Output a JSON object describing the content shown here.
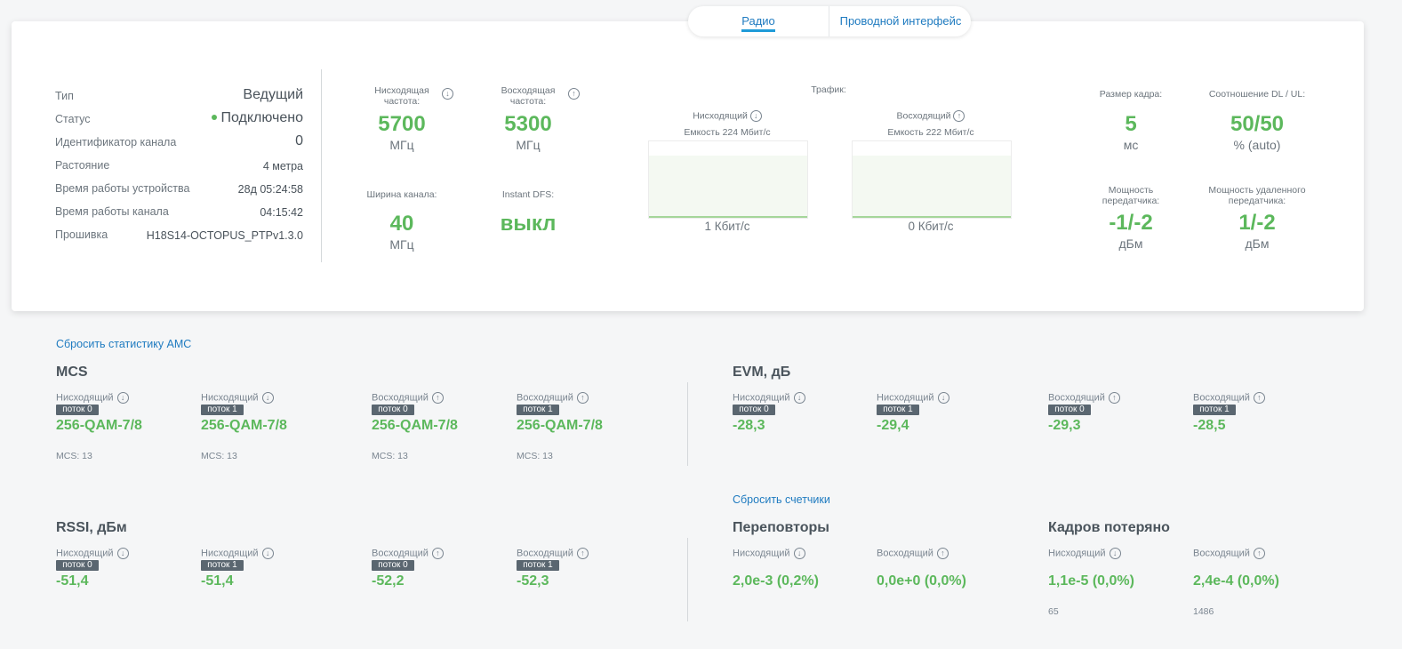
{
  "tabs": {
    "radio": "Радио",
    "wired": "Проводной интерфейс"
  },
  "info": [
    {
      "key": "Тип",
      "value": "Ведущий"
    },
    {
      "key": "Статус",
      "value": "Подключено"
    },
    {
      "key": "Идентификатор канала",
      "value": "0"
    },
    {
      "key": "Растояние",
      "value": "4 метра"
    },
    {
      "key": "Время работы устройства",
      "value": "28д 05:24:58"
    },
    {
      "key": "Время работы канала",
      "value": "04:15:42"
    },
    {
      "key": "Прошивка",
      "value": "H18S14-OCTOPUS_PTPv1.3.0"
    }
  ],
  "params": {
    "down_freq": {
      "label": "Нисходящая частота:",
      "value": "5700",
      "unit": "МГц"
    },
    "up_freq": {
      "label": "Восходящая частота:",
      "value": "5300",
      "unit": "МГц"
    },
    "bandwidth": {
      "label": "Ширина канала:",
      "value": "40",
      "unit": "МГц"
    },
    "dfs": {
      "label": "Instant DFS:",
      "value": "выкл"
    }
  },
  "traffic": {
    "title": "Трафик:",
    "down": {
      "label": "Нисходящий",
      "capacity": "Емкость 224 Мбит/с",
      "value": "1 Кбит/с",
      "level": 0.0
    },
    "up": {
      "label": "Восходящий",
      "capacity": "Емкость 222 Мбит/с",
      "value": "0 Кбит/с",
      "level": 0.0
    }
  },
  "frame": {
    "size": {
      "label": "Размер кадра:",
      "value": "5",
      "unit": "мс"
    },
    "ratio": {
      "label": "Соотношение DL / UL:",
      "value": "50/50",
      "unit": "% (auto)"
    },
    "tx_power": {
      "label": "Мощность передатчика:",
      "value": "-1/-2",
      "unit": "дБм"
    },
    "remote_tx_power": {
      "label": "Мощность удаленного передатчика:",
      "value": "1/-2",
      "unit": "дБм"
    }
  },
  "reset_amc": "Сбросить статистику AMC",
  "reset_counters": "Сбросить счетчики",
  "mcs": {
    "title": "MCS",
    "items": [
      {
        "dir": "Нисходящий",
        "stream": "поток 0",
        "value": "256-QAM-7/8",
        "sub": "MCS: 13"
      },
      {
        "dir": "Нисходящий",
        "stream": "поток 1",
        "value": "256-QAM-7/8",
        "sub": "MCS: 13"
      },
      {
        "dir": "Восходящий",
        "stream": "поток 0",
        "value": "256-QAM-7/8",
        "sub": "MCS: 13"
      },
      {
        "dir": "Восходящий",
        "stream": "поток 1",
        "value": "256-QAM-7/8",
        "sub": "MCS: 13"
      }
    ]
  },
  "evm": {
    "title": "EVM, дБ",
    "items": [
      {
        "dir": "Нисходящий",
        "stream": "поток 0",
        "value": "-28,3"
      },
      {
        "dir": "Нисходящий",
        "stream": "поток 1",
        "value": "-29,4"
      },
      {
        "dir": "Восходящий",
        "stream": "поток 0",
        "value": "-29,3"
      },
      {
        "dir": "Восходящий",
        "stream": "поток 1",
        "value": "-28,5"
      }
    ]
  },
  "rssi": {
    "title": "RSSI, дБм",
    "items": [
      {
        "dir": "Нисходящий",
        "stream": "поток 0",
        "value": "-51,4"
      },
      {
        "dir": "Нисходящий",
        "stream": "поток 1",
        "value": "-51,4"
      },
      {
        "dir": "Восходящий",
        "stream": "поток 0",
        "value": "-52,2"
      },
      {
        "dir": "Восходящий",
        "stream": "поток 1",
        "value": "-52,3"
      }
    ]
  },
  "retries": {
    "title": "Переповторы",
    "items": [
      {
        "dir": "Нисходящий",
        "value": "2,0e-3 (0,2%)"
      },
      {
        "dir": "Восходящий",
        "value": "0,0e+0 (0,0%)"
      }
    ]
  },
  "lost": {
    "title": "Кадров потеряно",
    "items": [
      {
        "dir": "Нисходящий",
        "value": "1,1e-5 (0,0%)",
        "sub": "65"
      },
      {
        "dir": "Восходящий",
        "value": "2,4e-4 (0,0%)",
        "sub": "1486"
      }
    ]
  },
  "colors": {
    "accent": "#5cb85c",
    "link": "#1f7bc0",
    "badge": "#5a6670"
  },
  "icons": {
    "down": "arrow-down-circle-icon",
    "up": "arrow-up-circle-icon"
  }
}
